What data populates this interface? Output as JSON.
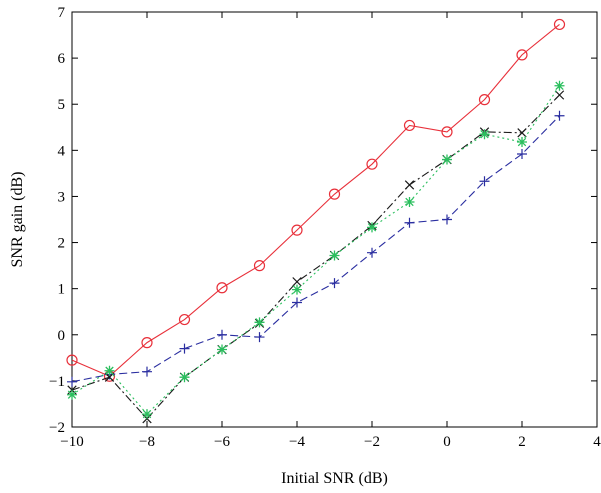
{
  "chart_data": {
    "type": "line",
    "title": "",
    "xlabel": "Initial SNR (dB)",
    "ylabel": "SNR gain (dB)",
    "xlim": [
      -10,
      4
    ],
    "ylim": [
      -2,
      7
    ],
    "xticks": [
      -10,
      -8,
      -6,
      -4,
      -2,
      0,
      2,
      4
    ],
    "yticks": [
      -2,
      -1,
      0,
      1,
      2,
      3,
      4,
      5,
      6,
      7
    ],
    "xtick_labels": [
      "−10",
      "−8",
      "−6",
      "−4",
      "−2",
      "0",
      "2",
      "4"
    ],
    "ytick_labels": [
      "−2",
      "−1",
      "0",
      "1",
      "2",
      "3",
      "4",
      "5",
      "6",
      "7"
    ],
    "grid": false,
    "legend": false,
    "x": [
      -10,
      -9,
      -8,
      -7,
      -6,
      -5,
      -4,
      -3,
      -2,
      -1,
      0,
      1,
      2,
      3
    ],
    "series": [
      {
        "color": "#e8303a",
        "dash": "",
        "marker": "circle",
        "values": [
          -0.55,
          -0.9,
          -0.17,
          0.33,
          1.02,
          1.5,
          2.27,
          3.05,
          3.7,
          4.54,
          4.4,
          5.1,
          6.07,
          6.73
        ]
      },
      {
        "color": "#2a2ea0",
        "dash": "8,4",
        "marker": "plus",
        "values": [
          -1.02,
          -0.86,
          -0.8,
          -0.3,
          0.0,
          -0.05,
          0.7,
          1.12,
          1.78,
          2.43,
          2.5,
          3.33,
          3.92,
          4.75
        ]
      },
      {
        "color": "#1a1a1a",
        "dash": "8,3,2,3",
        "marker": "x",
        "values": [
          -1.2,
          -0.92,
          -1.82,
          -0.92,
          -0.32,
          0.25,
          1.15,
          1.72,
          2.37,
          3.25,
          3.8,
          4.4,
          4.38,
          5.2
        ]
      },
      {
        "color": "#2bbf5e",
        "dash": "2,3",
        "marker": "star",
        "values": [
          -1.3,
          -0.78,
          -1.72,
          -0.92,
          -0.32,
          0.27,
          0.98,
          1.72,
          2.33,
          2.88,
          3.8,
          4.35,
          4.18,
          5.4
        ]
      }
    ]
  }
}
